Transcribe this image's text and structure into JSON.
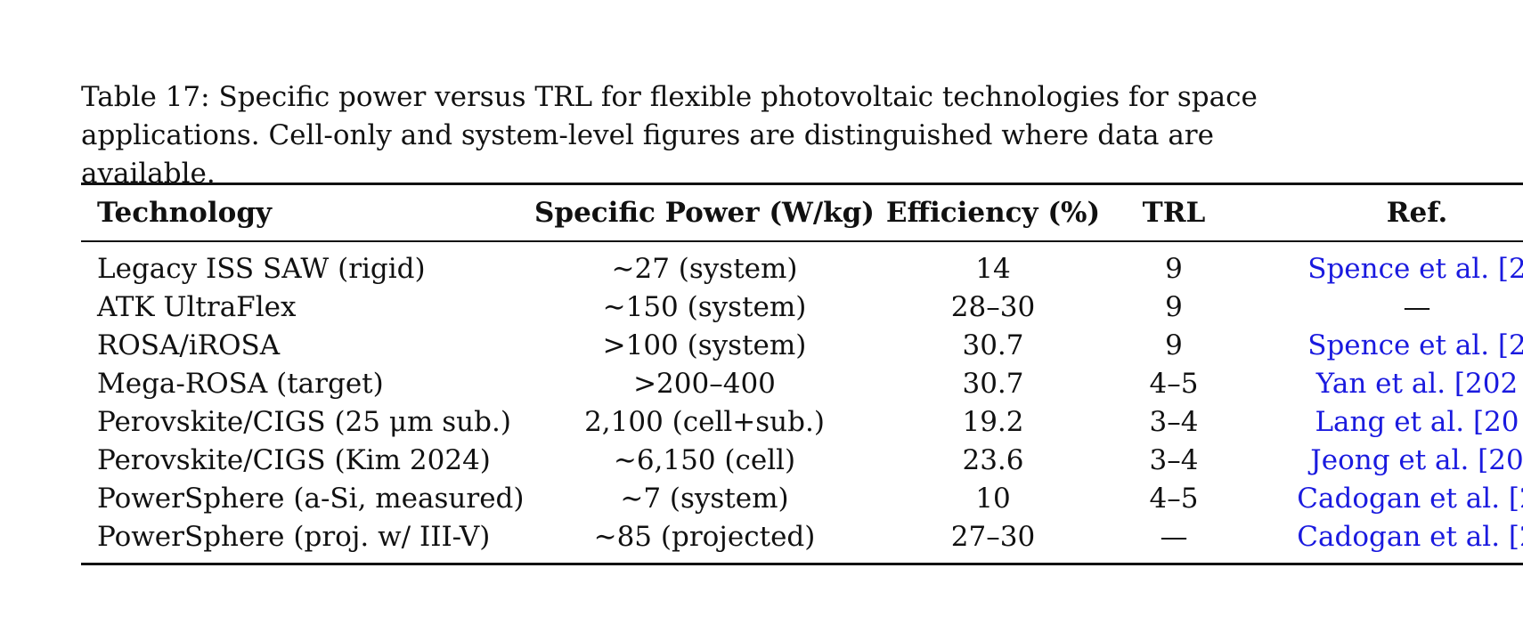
{
  "caption": "Table 17: Specific power versus TRL for flexible photovoltaic technologies for space applications. Cell-only and system-level figures are distinguished where data are available.",
  "table": {
    "headers": {
      "technology": "Technology",
      "specific_power": "Specific Power (W/kg)",
      "efficiency": "Efficiency (%)",
      "trl": "TRL",
      "ref": "Ref."
    },
    "rows": [
      {
        "technology": "Legacy ISS SAW (rigid)",
        "specific_power": "∼27 (system)",
        "efficiency": "14",
        "trl": "9",
        "ref": "Spence et al. [2"
      },
      {
        "technology": "ATK UltraFlex",
        "specific_power": "∼150 (system)",
        "efficiency": "28–30",
        "trl": "9",
        "ref": "—"
      },
      {
        "technology": "ROSA/iROSA",
        "specific_power": ">100 (system)",
        "efficiency": "30.7",
        "trl": "9",
        "ref": "Spence et al. [2"
      },
      {
        "technology": "Mega-ROSA (target)",
        "specific_power": ">200–400",
        "efficiency": "30.7",
        "trl": "4–5",
        "ref": "Yan et al. [202"
      },
      {
        "technology": "Perovskite/CIGS (25 μm sub.)",
        "specific_power": "2,100 (cell+sub.)",
        "efficiency": "19.2",
        "trl": "3–4",
        "ref": "Lang et al. [20"
      },
      {
        "technology": "Perovskite/CIGS (Kim 2024)",
        "specific_power": "∼6,150 (cell)",
        "efficiency": "23.6",
        "trl": "3–4",
        "ref": "Jeong et al. [20"
      },
      {
        "technology": "PowerSphere (a-Si, measured)",
        "specific_power": "∼7 (system)",
        "efficiency": "10",
        "trl": "4–5",
        "ref": "Cadogan et al. [2"
      },
      {
        "technology": "PowerSphere (proj. w/ III-V)",
        "specific_power": "∼85 (projected)",
        "efficiency": "27–30",
        "trl": "—",
        "ref": "Cadogan et al. [2"
      }
    ]
  },
  "colors": {
    "text": "#111111",
    "link": "#1a1adf",
    "rule": "#111111"
  }
}
